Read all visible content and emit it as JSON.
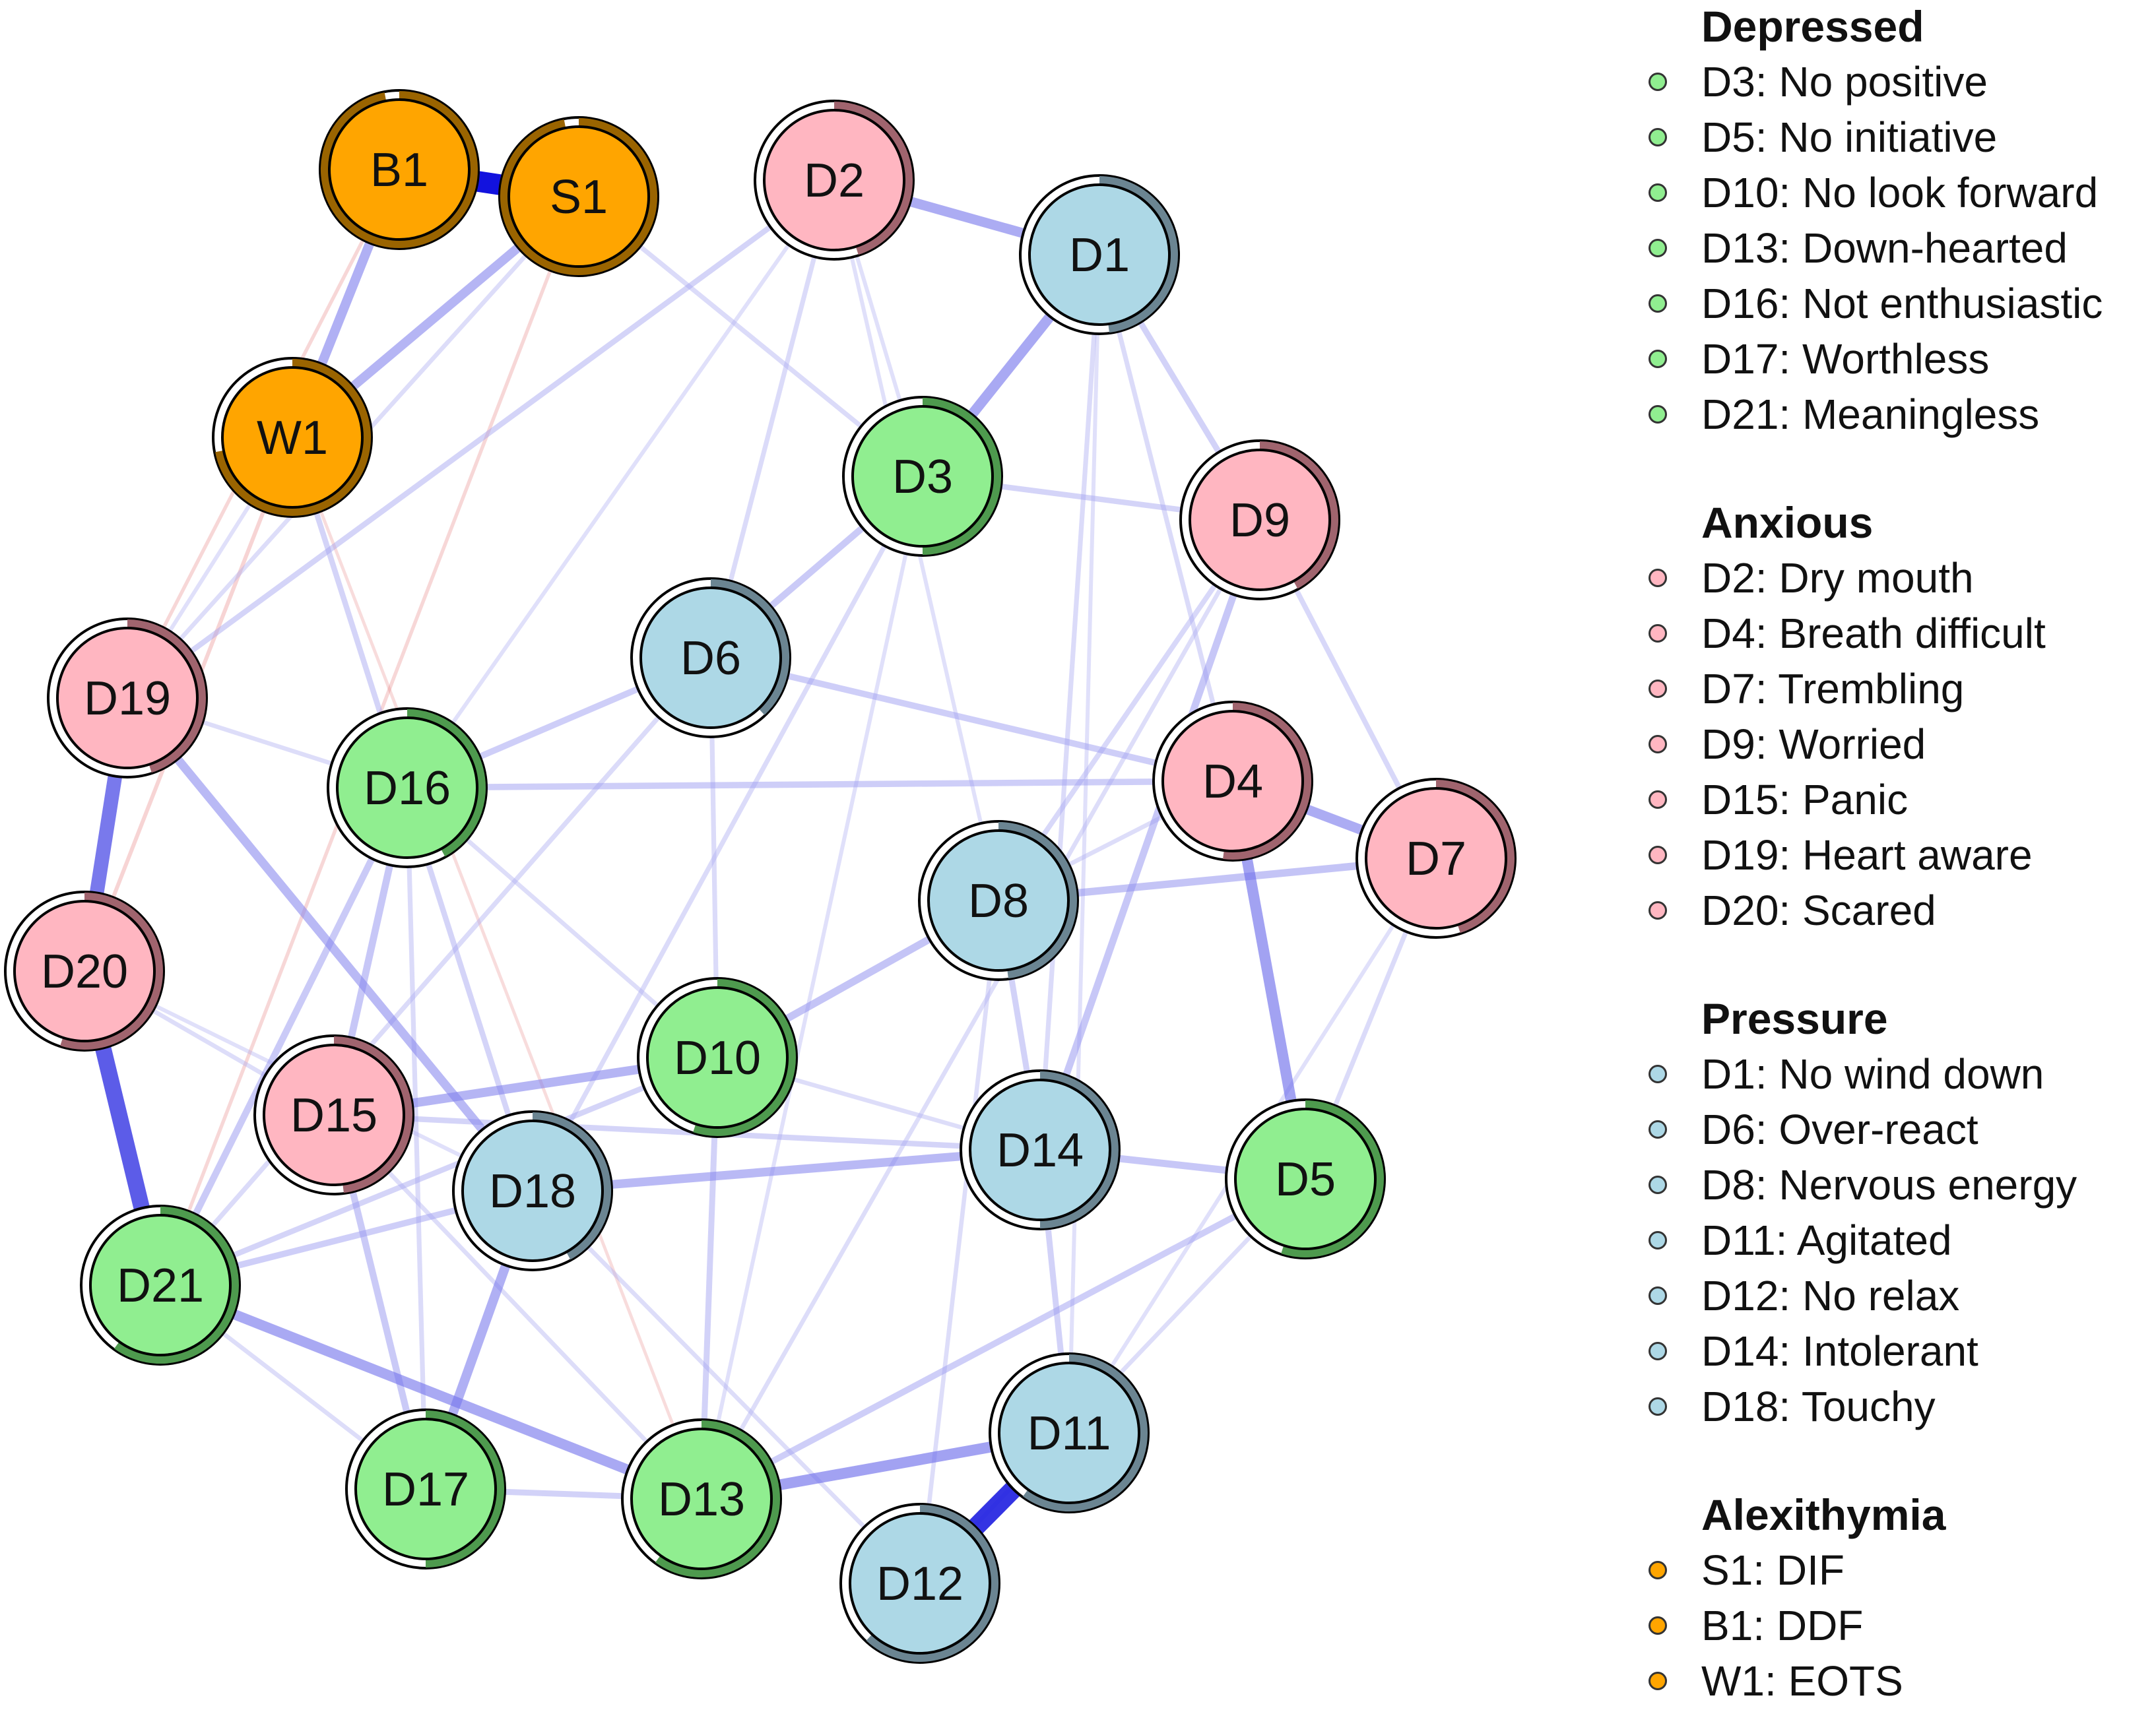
{
  "groups": [
    {
      "title": "Depressed",
      "color": "#90EE90",
      "ring": "#4e9a4e",
      "items": [
        {
          "id": "D3",
          "label": "No positive"
        },
        {
          "id": "D5",
          "label": "No initiative"
        },
        {
          "id": "D10",
          "label": "No look forward"
        },
        {
          "id": "D13",
          "label": "Down-hearted"
        },
        {
          "id": "D16",
          "label": "Not enthusiastic"
        },
        {
          "id": "D17",
          "label": "Worthless"
        },
        {
          "id": "D21",
          "label": "Meaningless"
        }
      ],
      "legend_lines": [
        "D3: No positive",
        "D5: No initiative",
        "D10: No look forward",
        "D13: Down-hearted",
        "D16: Not enthusiastic",
        "D17: Worthless",
        "D21: Meaningless"
      ]
    },
    {
      "title": "Anxious",
      "color": "#FFB6C1",
      "ring": "#a0646e",
      "items": [
        {
          "id": "D2",
          "label": "Dry mouth"
        },
        {
          "id": "D4",
          "label": "Breath difficult"
        },
        {
          "id": "D7",
          "label": "Trembling"
        },
        {
          "id": "D9",
          "label": "Worried"
        },
        {
          "id": "D15",
          "label": "Panic"
        },
        {
          "id": "D19",
          "label": "Heart aware"
        },
        {
          "id": "D20",
          "label": "Scared"
        }
      ],
      "legend_lines": [
        "D2: Dry mouth",
        "D4: Breath difficult",
        "D7: Trembling",
        "D9: Worried",
        "D15: Panic",
        "D19: Heart aware",
        "D20: Scared"
      ]
    },
    {
      "title": "Pressure",
      "color": "#ADD8E6",
      "ring": "#6b8592",
      "items": [
        {
          "id": "D1",
          "label": "No wind down"
        },
        {
          "id": "D6",
          "label": "Over-react"
        },
        {
          "id": "D8",
          "label": "Nervous energy"
        },
        {
          "id": "D11",
          "label": "Agitated"
        },
        {
          "id": "D12",
          "label": "No relax"
        },
        {
          "id": "D14",
          "label": "Intolerant"
        },
        {
          "id": "D18",
          "label": "Touchy"
        }
      ],
      "legend_lines": [
        "D1: No wind down",
        "D6: Over-react",
        "D8: Nervous energy",
        "D11: Agitated",
        "D12: No relax",
        "D14: Intolerant",
        "D18: Touchy"
      ]
    },
    {
      "title": "Alexithymia",
      "color": "#FFA500",
      "ring": "#9a6400",
      "items": [
        {
          "id": "S1",
          "label": "DIF"
        },
        {
          "id": "B1",
          "label": "DDF"
        },
        {
          "id": "W1",
          "label": "EOTS"
        }
      ],
      "legend_lines": [
        "S1: DIF",
        "B1: DDF",
        "W1: EOTS"
      ]
    }
  ],
  "nodes": [
    {
      "id": "B1",
      "group": "Alexithymia",
      "pie": 0.97
    },
    {
      "id": "S1",
      "group": "Alexithymia",
      "pie": 0.97
    },
    {
      "id": "W1",
      "group": "Alexithymia",
      "pie": 0.72
    },
    {
      "id": "D2",
      "group": "Anxious",
      "pie": 0.45
    },
    {
      "id": "D1",
      "group": "Pressure",
      "pie": 0.48
    },
    {
      "id": "D3",
      "group": "Depressed",
      "pie": 0.5
    },
    {
      "id": "D9",
      "group": "Anxious",
      "pie": 0.42
    },
    {
      "id": "D6",
      "group": "Pressure",
      "pie": 0.38
    },
    {
      "id": "D19",
      "group": "Anxious",
      "pie": 0.45
    },
    {
      "id": "D16",
      "group": "Depressed",
      "pie": 0.42
    },
    {
      "id": "D4",
      "group": "Anxious",
      "pie": 0.52
    },
    {
      "id": "D7",
      "group": "Anxious",
      "pie": 0.45
    },
    {
      "id": "D8",
      "group": "Pressure",
      "pie": 0.48
    },
    {
      "id": "D20",
      "group": "Anxious",
      "pie": 0.55
    },
    {
      "id": "D10",
      "group": "Depressed",
      "pie": 0.55
    },
    {
      "id": "D15",
      "group": "Anxious",
      "pie": 0.48
    },
    {
      "id": "D14",
      "group": "Pressure",
      "pie": 0.5
    },
    {
      "id": "D18",
      "group": "Pressure",
      "pie": 0.42
    },
    {
      "id": "D5",
      "group": "Depressed",
      "pie": 0.55
    },
    {
      "id": "D21",
      "group": "Depressed",
      "pie": 0.6
    },
    {
      "id": "D11",
      "group": "Pressure",
      "pie": 0.6
    },
    {
      "id": "D17",
      "group": "Depressed",
      "pie": 0.5
    },
    {
      "id": "D13",
      "group": "Depressed",
      "pie": 0.6
    },
    {
      "id": "D12",
      "group": "Pressure",
      "pie": 0.62
    }
  ],
  "edges": [
    {
      "from": "B1",
      "to": "S1",
      "weight": 0.95,
      "sign": "pos"
    },
    {
      "from": "D11",
      "to": "D12",
      "weight": 0.85,
      "sign": "pos"
    },
    {
      "from": "D20",
      "to": "D21",
      "weight": 0.72,
      "sign": "pos"
    },
    {
      "from": "D19",
      "to": "D20",
      "weight": 0.62,
      "sign": "pos"
    },
    {
      "from": "D4",
      "to": "D5",
      "weight": 0.45,
      "sign": "pos"
    },
    {
      "from": "D13",
      "to": "D11",
      "weight": 0.45,
      "sign": "pos"
    },
    {
      "from": "D1",
      "to": "D3",
      "weight": 0.42,
      "sign": "pos"
    },
    {
      "from": "D2",
      "to": "D1",
      "weight": 0.4,
      "sign": "pos"
    },
    {
      "from": "D21",
      "to": "D13",
      "weight": 0.42,
      "sign": "pos"
    },
    {
      "from": "D4",
      "to": "D7",
      "weight": 0.4,
      "sign": "pos"
    },
    {
      "from": "B1",
      "to": "W1",
      "weight": 0.38,
      "sign": "pos"
    },
    {
      "from": "S1",
      "to": "W1",
      "weight": 0.36,
      "sign": "pos"
    },
    {
      "from": "D18",
      "to": "D17",
      "weight": 0.38,
      "sign": "pos"
    },
    {
      "from": "D15",
      "to": "D10",
      "weight": 0.36,
      "sign": "pos"
    },
    {
      "from": "D18",
      "to": "D14",
      "weight": 0.34,
      "sign": "pos"
    },
    {
      "from": "D19",
      "to": "D18",
      "weight": 0.34,
      "sign": "pos"
    },
    {
      "from": "D16",
      "to": "D4",
      "weight": 0.22,
      "sign": "pos"
    },
    {
      "from": "D8",
      "to": "D7",
      "weight": 0.28,
      "sign": "pos"
    },
    {
      "from": "D10",
      "to": "D8",
      "weight": 0.28,
      "sign": "pos"
    },
    {
      "from": "D14",
      "to": "D5",
      "weight": 0.26,
      "sign": "pos"
    },
    {
      "from": "D9",
      "to": "D14",
      "weight": 0.26,
      "sign": "pos"
    },
    {
      "from": "D3",
      "to": "D6",
      "weight": 0.24,
      "sign": "pos"
    },
    {
      "from": "D16",
      "to": "D15",
      "weight": 0.26,
      "sign": "pos"
    },
    {
      "from": "D16",
      "to": "D21",
      "weight": 0.24,
      "sign": "pos"
    },
    {
      "from": "D6",
      "to": "D16",
      "weight": 0.22,
      "sign": "pos"
    },
    {
      "from": "D6",
      "to": "D4",
      "weight": 0.22,
      "sign": "pos"
    },
    {
      "from": "D21",
      "to": "D18",
      "weight": 0.22,
      "sign": "pos"
    },
    {
      "from": "D17",
      "to": "D15",
      "weight": 0.24,
      "sign": "pos"
    },
    {
      "from": "D1",
      "to": "D9",
      "weight": 0.2,
      "sign": "pos"
    },
    {
      "from": "D2",
      "to": "D19",
      "weight": 0.18,
      "sign": "pos"
    },
    {
      "from": "D3",
      "to": "D9",
      "weight": 0.18,
      "sign": "pos"
    },
    {
      "from": "D10",
      "to": "D13",
      "weight": 0.2,
      "sign": "pos"
    },
    {
      "from": "D14",
      "to": "D11",
      "weight": 0.2,
      "sign": "pos"
    },
    {
      "from": "D8",
      "to": "D14",
      "weight": 0.2,
      "sign": "pos"
    },
    {
      "from": "D13",
      "to": "D5",
      "weight": 0.22,
      "sign": "pos"
    },
    {
      "from": "D17",
      "to": "D13",
      "weight": 0.2,
      "sign": "pos"
    },
    {
      "from": "D10",
      "to": "D21",
      "weight": 0.18,
      "sign": "pos"
    },
    {
      "from": "W1",
      "to": "D18",
      "weight": 0.18,
      "sign": "pos"
    },
    {
      "from": "D15",
      "to": "D14",
      "weight": 0.18,
      "sign": "pos"
    },
    {
      "from": "D9",
      "to": "D8",
      "weight": 0.16,
      "sign": "pos"
    },
    {
      "from": "D9",
      "to": "D7",
      "weight": 0.16,
      "sign": "pos"
    },
    {
      "from": "D2",
      "to": "D6",
      "weight": 0.14,
      "sign": "pos"
    },
    {
      "from": "S1",
      "to": "D3",
      "weight": 0.14,
      "sign": "pos"
    },
    {
      "from": "D1",
      "to": "D4",
      "weight": 0.14,
      "sign": "pos"
    },
    {
      "from": "D1",
      "to": "D14",
      "weight": 0.14,
      "sign": "pos"
    },
    {
      "from": "D3",
      "to": "D18",
      "weight": 0.14,
      "sign": "pos"
    },
    {
      "from": "D6",
      "to": "D10",
      "weight": 0.14,
      "sign": "pos"
    },
    {
      "from": "D6",
      "to": "D21",
      "weight": 0.14,
      "sign": "pos"
    },
    {
      "from": "D16",
      "to": "D10",
      "weight": 0.12,
      "sign": "pos"
    },
    {
      "from": "D16",
      "to": "D17",
      "weight": 0.14,
      "sign": "pos"
    },
    {
      "from": "D7",
      "to": "D5",
      "weight": 0.14,
      "sign": "pos"
    },
    {
      "from": "D8",
      "to": "D12",
      "weight": 0.12,
      "sign": "pos"
    },
    {
      "from": "D5",
      "to": "D12",
      "weight": 0.12,
      "sign": "pos"
    },
    {
      "from": "D20",
      "to": "D15",
      "weight": 0.12,
      "sign": "pos"
    },
    {
      "from": "D19",
      "to": "D16",
      "weight": 0.12,
      "sign": "pos"
    },
    {
      "from": "D9",
      "to": "D13",
      "weight": 0.12,
      "sign": "pos"
    },
    {
      "from": "D3",
      "to": "D13",
      "weight": 0.1,
      "sign": "pos"
    },
    {
      "from": "D2",
      "to": "D8",
      "weight": 0.1,
      "sign": "pos"
    },
    {
      "from": "W1",
      "to": "D19",
      "weight": 0.1,
      "sign": "pos"
    },
    {
      "from": "S1",
      "to": "D19",
      "weight": 0.12,
      "sign": "pos"
    },
    {
      "from": "D4",
      "to": "D8",
      "weight": 0.12,
      "sign": "pos"
    },
    {
      "from": "D15",
      "to": "D13",
      "weight": 0.12,
      "sign": "pos"
    },
    {
      "from": "D18",
      "to": "D12",
      "weight": 0.12,
      "sign": "pos"
    },
    {
      "from": "D20",
      "to": "D18",
      "weight": 0.1,
      "sign": "pos"
    },
    {
      "from": "D7",
      "to": "D11",
      "weight": 0.1,
      "sign": "pos"
    },
    {
      "from": "D1",
      "to": "D11",
      "weight": 0.1,
      "sign": "pos"
    },
    {
      "from": "D2",
      "to": "D3",
      "weight": 0.1,
      "sign": "pos"
    },
    {
      "from": "D16",
      "to": "D2",
      "weight": 0.1,
      "sign": "pos"
    },
    {
      "from": "D10",
      "to": "D14",
      "weight": 0.12,
      "sign": "pos"
    },
    {
      "from": "D21",
      "to": "D17",
      "weight": 0.12,
      "sign": "pos"
    },
    {
      "from": "W1",
      "to": "D20",
      "weight": 0.1,
      "sign": "neg"
    },
    {
      "from": "S1",
      "to": "D21",
      "weight": 0.08,
      "sign": "neg"
    },
    {
      "from": "B1",
      "to": "D19",
      "weight": 0.08,
      "sign": "neg"
    },
    {
      "from": "W1",
      "to": "D13",
      "weight": 0.06,
      "sign": "neg"
    }
  ]
}
